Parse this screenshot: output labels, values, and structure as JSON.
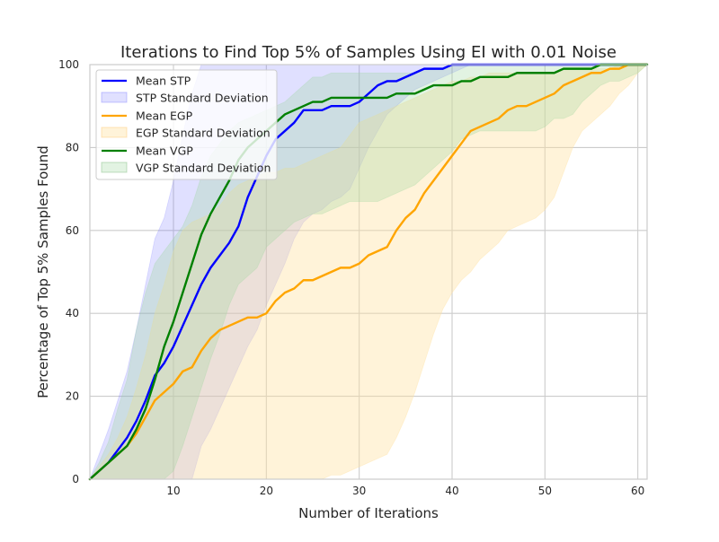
{
  "chart_data": {
    "type": "line",
    "title": "Iterations to Find Top 5% of Samples Using EI with 0.01 Noise",
    "xlabel": "Number of Iterations",
    "ylabel": "Percentage of Top 5% Samples Found",
    "xlim": [
      1,
      61
    ],
    "ylim": [
      0,
      100
    ],
    "xticks": [
      10,
      20,
      30,
      40,
      50,
      60
    ],
    "yticks": [
      0,
      20,
      40,
      60,
      80,
      100
    ],
    "grid": true,
    "legend_position": "top-left",
    "series": [
      {
        "name": "Mean STP",
        "band_name": "STP Standard Deviation",
        "color": "#0000ff",
        "band_color": "#6666ff",
        "band_opacity": 0.2,
        "x": [
          1,
          2,
          3,
          4,
          5,
          6,
          7,
          8,
          9,
          10,
          11,
          12,
          13,
          14,
          15,
          16,
          17,
          18,
          19,
          20,
          21,
          22,
          23,
          24,
          25,
          26,
          27,
          28,
          29,
          30,
          31,
          32,
          33,
          34,
          35,
          36,
          37,
          38,
          39,
          40,
          41,
          42,
          43,
          44,
          45,
          46,
          47,
          48,
          49,
          50,
          51,
          52,
          53,
          54,
          55,
          56,
          57,
          58,
          59,
          60,
          61
        ],
        "mean": [
          0,
          2,
          4,
          7,
          10,
          14,
          19,
          25,
          28,
          32,
          37,
          42,
          47,
          51,
          54,
          57,
          61,
          68,
          73,
          78,
          82,
          84,
          86,
          89,
          89,
          89,
          90,
          90,
          90,
          91,
          93,
          95,
          96,
          96,
          97,
          98,
          99,
          99,
          99,
          100,
          100,
          100,
          100,
          100,
          100,
          100,
          100,
          100,
          100,
          100,
          100,
          100,
          100,
          100,
          100,
          100,
          100,
          100,
          100,
          100,
          100
        ],
        "lower": [
          0,
          0,
          0,
          0,
          0,
          0,
          0,
          0,
          0,
          0,
          0,
          0,
          8,
          12,
          17,
          22,
          27,
          32,
          36,
          42,
          47,
          52,
          58,
          62,
          64,
          65,
          67,
          68,
          70,
          75,
          80,
          84,
          88,
          90,
          92,
          94,
          95,
          96,
          97,
          98,
          99,
          100,
          100,
          100,
          100,
          100,
          100,
          100,
          100,
          100,
          100,
          100,
          100,
          100,
          100,
          100,
          100,
          100,
          100,
          100,
          100
        ],
        "upper": [
          0,
          6,
          12,
          19,
          26,
          36,
          47,
          58,
          63,
          72,
          83,
          93,
          100,
          100,
          100,
          100,
          100,
          100,
          100,
          100,
          100,
          100,
          100,
          100,
          100,
          100,
          100,
          100,
          100,
          100,
          100,
          100,
          100,
          100,
          100,
          100,
          100,
          100,
          100,
          100,
          100,
          100,
          100,
          100,
          100,
          100,
          100,
          100,
          100,
          100,
          100,
          100,
          100,
          100,
          100,
          100,
          100,
          100,
          100,
          100,
          100
        ]
      },
      {
        "name": "Mean EGP",
        "band_name": "EGP Standard Deviation",
        "color": "#ffa500",
        "band_color": "#ffe0a0",
        "band_opacity": 0.4,
        "x": [
          1,
          2,
          3,
          4,
          5,
          6,
          7,
          8,
          9,
          10,
          11,
          12,
          13,
          14,
          15,
          16,
          17,
          18,
          19,
          20,
          21,
          22,
          23,
          24,
          25,
          26,
          27,
          28,
          29,
          30,
          31,
          32,
          33,
          34,
          35,
          36,
          37,
          38,
          39,
          40,
          41,
          42,
          43,
          44,
          45,
          46,
          47,
          48,
          49,
          50,
          51,
          52,
          53,
          54,
          55,
          56,
          57,
          58,
          59,
          60,
          61
        ],
        "mean": [
          0,
          2,
          4,
          6,
          8,
          11,
          15,
          19,
          21,
          23,
          26,
          27,
          31,
          34,
          36,
          37,
          38,
          39,
          39,
          40,
          43,
          45,
          46,
          48,
          48,
          49,
          50,
          51,
          51,
          52,
          54,
          55,
          56,
          60,
          63,
          65,
          69,
          72,
          75,
          78,
          81,
          84,
          85,
          86,
          87,
          89,
          90,
          90,
          91,
          92,
          93,
          95,
          96,
          97,
          98,
          98,
          99,
          99,
          100,
          100,
          100
        ],
        "lower": [
          0,
          0,
          0,
          0,
          0,
          0,
          0,
          0,
          0,
          0,
          0,
          0,
          0,
          0,
          0,
          0,
          0,
          0,
          0,
          0,
          0,
          0,
          0,
          0,
          0,
          0,
          1,
          1,
          2,
          3,
          4,
          5,
          6,
          10,
          15,
          21,
          28,
          35,
          41,
          45,
          48,
          50,
          53,
          55,
          57,
          60,
          61,
          62,
          63,
          65,
          68,
          74,
          80,
          84,
          86,
          88,
          90,
          93,
          95,
          98,
          100
        ],
        "upper": [
          0,
          3,
          6,
          10,
          15,
          22,
          30,
          40,
          47,
          55,
          60,
          62,
          63,
          64,
          66,
          69,
          71,
          72,
          73,
          74,
          74,
          75,
          75,
          76,
          77,
          78,
          79,
          80,
          83,
          86,
          87,
          88,
          89,
          90,
          91,
          92,
          93,
          94,
          95,
          96,
          96,
          97,
          97,
          98,
          98,
          98,
          98,
          98,
          98,
          98,
          98,
          99,
          99,
          99,
          99,
          99,
          99,
          100,
          100,
          100,
          100
        ]
      },
      {
        "name": "Mean VGP",
        "band_name": "VGP Standard Deviation",
        "color": "#008000",
        "band_color": "#a0d8a0",
        "band_opacity": 0.3,
        "x": [
          1,
          2,
          3,
          4,
          5,
          6,
          7,
          8,
          9,
          10,
          11,
          12,
          13,
          14,
          15,
          16,
          17,
          18,
          19,
          20,
          21,
          22,
          23,
          24,
          25,
          26,
          27,
          28,
          29,
          30,
          31,
          32,
          33,
          34,
          35,
          36,
          37,
          38,
          39,
          40,
          41,
          42,
          43,
          44,
          45,
          46,
          47,
          48,
          49,
          50,
          51,
          52,
          53,
          54,
          55,
          56,
          57,
          58,
          59,
          60,
          61
        ],
        "mean": [
          0,
          2,
          4,
          6,
          8,
          12,
          17,
          24,
          32,
          38,
          45,
          52,
          59,
          64,
          68,
          72,
          77,
          80,
          82,
          84,
          86,
          88,
          89,
          90,
          91,
          91,
          92,
          92,
          92,
          92,
          92,
          92,
          92,
          93,
          93,
          93,
          94,
          95,
          95,
          95,
          96,
          96,
          97,
          97,
          97,
          97,
          98,
          98,
          98,
          98,
          98,
          99,
          99,
          99,
          99,
          100,
          100,
          100,
          100,
          100,
          100
        ],
        "lower": [
          0,
          0,
          0,
          0,
          0,
          0,
          0,
          0,
          0,
          2,
          8,
          15,
          22,
          29,
          35,
          42,
          47,
          49,
          51,
          56,
          58,
          60,
          62,
          63,
          64,
          64,
          65,
          66,
          67,
          67,
          67,
          67,
          68,
          69,
          70,
          71,
          73,
          75,
          77,
          79,
          82,
          83,
          84,
          84,
          84,
          84,
          84,
          84,
          84,
          85,
          87,
          87,
          88,
          91,
          93,
          95,
          96,
          96,
          97,
          98,
          100
        ],
        "upper": [
          0,
          4,
          9,
          17,
          24,
          36,
          45,
          52,
          55,
          58,
          61,
          66,
          73,
          78,
          81,
          84,
          86,
          87,
          88,
          89,
          90,
          91,
          93,
          95,
          97,
          97,
          98,
          98,
          98,
          98,
          98,
          98,
          98,
          98,
          98,
          98,
          99,
          99,
          99,
          100,
          100,
          100,
          100,
          100,
          100,
          100,
          100,
          100,
          100,
          100,
          100,
          100,
          100,
          100,
          100,
          100,
          100,
          100,
          100,
          100,
          100
        ]
      }
    ]
  }
}
